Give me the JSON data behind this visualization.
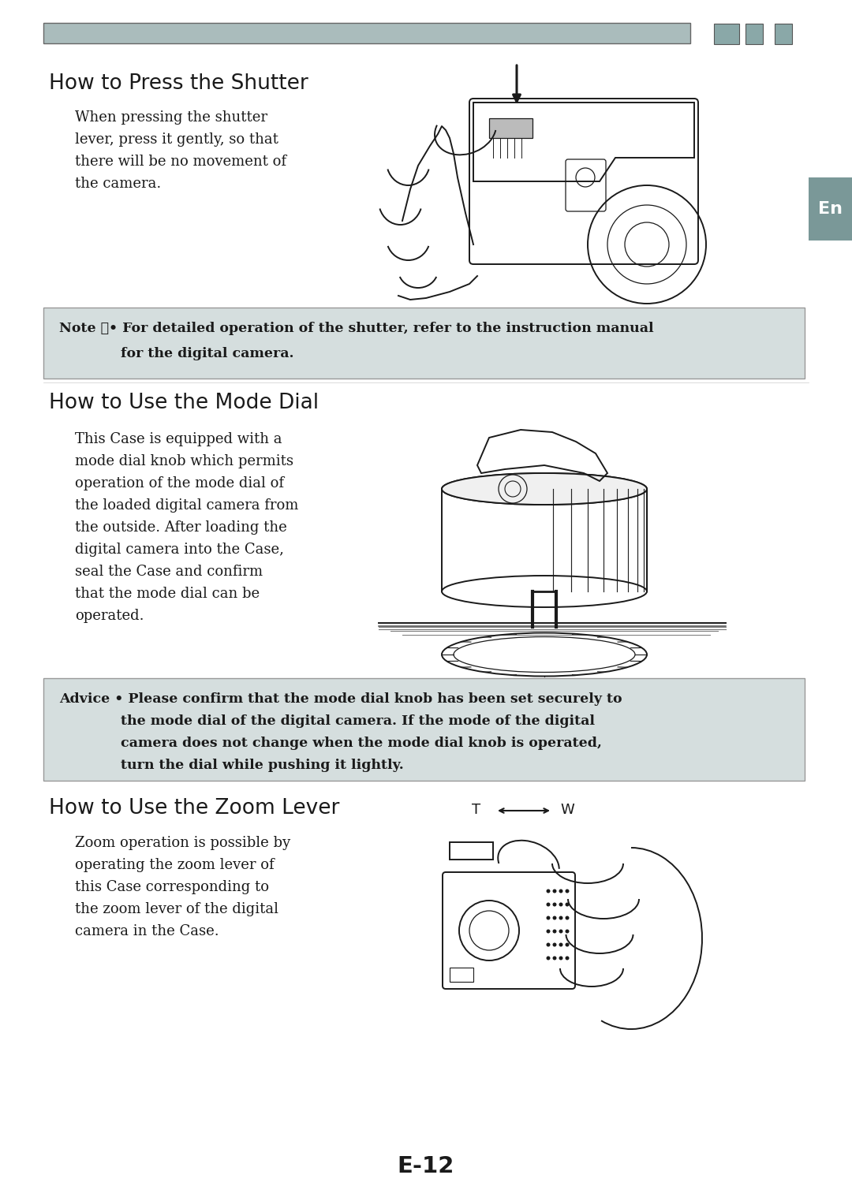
{
  "background_color": "#ffffff",
  "page_width": 10.8,
  "page_height": 15.23,
  "dpi": 100,
  "header_bar_color": "#aabcbc",
  "header_squares_color": "#8aa8a8",
  "en_tab_color": "#7a9898",
  "text_color": "#1a1a1a",
  "box_bg_color": "#d5dede",
  "box_edge_color": "#999999",
  "section1_title": "How to Press the Shutter",
  "section1_body_lines": [
    "When pressing the shutter",
    "lever, press it gently, so that",
    "there will be no movement of",
    "the camera."
  ],
  "note_line1": "Note ：• For detailed operation of the shutter, refer to the instruction manual",
  "note_line2": "             for the digital camera.",
  "section2_title": "How to Use the Mode Dial",
  "section2_body_lines": [
    "This Case is equipped with a",
    "mode dial knob which permits",
    "operation of the mode dial of",
    "the loaded digital camera from",
    "the outside. After loading the",
    "digital camera into the Case,",
    "seal the Case and confirm",
    "that the mode dial can be",
    "operated."
  ],
  "advice_line1": "Advice • Please confirm that the mode dial knob has been set securely to",
  "advice_line2": "             the mode dial of the digital camera. If the mode of the digital",
  "advice_line3": "             camera does not change when the mode dial knob is operated,",
  "advice_line4": "             turn the dial while pushing it lightly.",
  "section3_title": "How to Use the Zoom Lever",
  "section3_body_lines": [
    "Zoom operation is possible by",
    "operating the zoom lever of",
    "this Case corresponding to",
    "the zoom lever of the digital",
    "camera in the Case."
  ],
  "page_number": "E-12"
}
